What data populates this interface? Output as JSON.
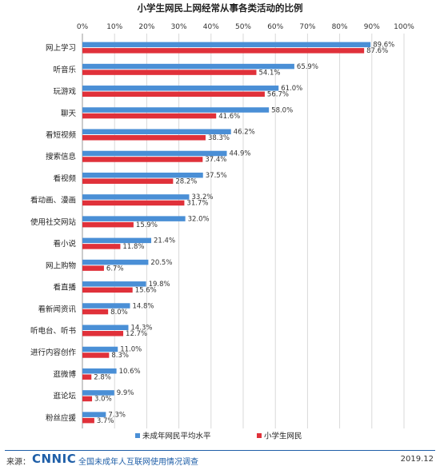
{
  "chart_data": {
    "type": "bar",
    "orientation": "horizontal",
    "title": "小学生网民上网经常从事各类活动的比例",
    "xlabel": "",
    "ylabel": "",
    "xlim": [
      0,
      100
    ],
    "x_ticks": [
      "0%",
      "10%",
      "20%",
      "30%",
      "40%",
      "50%",
      "60%",
      "70%",
      "80%",
      "90%",
      "100%"
    ],
    "categories": [
      "网上学习",
      "听音乐",
      "玩游戏",
      "聊天",
      "看短视频",
      "搜索信息",
      "看视频",
      "看动画、漫画",
      "使用社交网站",
      "看小说",
      "网上购物",
      "看直播",
      "看新闻资讯",
      "听电台、听书",
      "进行内容创作",
      "逛微博",
      "逛论坛",
      "粉丝应援"
    ],
    "series": [
      {
        "name": "未成年网民平均水平",
        "color": "#4a8fd6",
        "values": [
          89.6,
          65.9,
          61.0,
          58.0,
          46.2,
          44.9,
          37.5,
          33.2,
          32.0,
          21.4,
          20.5,
          19.8,
          14.8,
          14.3,
          11.0,
          10.6,
          9.9,
          7.3
        ],
        "labels": [
          "89.6%",
          "65.9%",
          "61.0%",
          "58.0%",
          "46.2%",
          "44.9%",
          "37.5%",
          "33.2%",
          "32.0%",
          "21.4%",
          "20.5%",
          "19.8%",
          "14.8%",
          "14.3%",
          "11.0%",
          "10.6%",
          "9.9%",
          "7.3%"
        ]
      },
      {
        "name": "小学生网民",
        "color": "#e0313a",
        "values": [
          87.6,
          54.1,
          56.7,
          41.6,
          38.3,
          37.4,
          28.2,
          31.7,
          15.9,
          11.8,
          6.7,
          15.6,
          8.0,
          12.7,
          8.3,
          2.8,
          3.0,
          3.7
        ],
        "labels": [
          "87.6%",
          "54.1%",
          "56.7%",
          "41.6%",
          "38.3%",
          "37.4%",
          "28.2%",
          "31.7%",
          "15.9%",
          "11.8%",
          "6.7%",
          "15.6%",
          "8.0%",
          "12.7%",
          "8.3%",
          "2.8%",
          "3.0%",
          "3.7%"
        ]
      }
    ],
    "grid": true,
    "legend": "bottom"
  },
  "footer": {
    "source_label": "来源：",
    "logo_text": "CNNIC",
    "org": "全国未成年人互联网使用情况调查",
    "date": "2019.12"
  },
  "colors": {
    "series_a": "#4a8fd6",
    "series_b": "#e0313a",
    "rule": "#1f5fa8"
  }
}
